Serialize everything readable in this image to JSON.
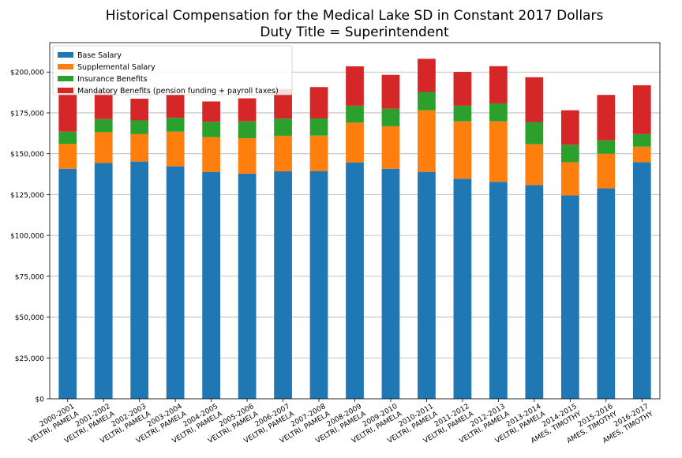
{
  "chart_data": {
    "type": "bar",
    "stacked": true,
    "title": "Historical Compensation for the Medical Lake SD in Constant 2017 Dollars",
    "subtitle": "Duty Title = Superintendent",
    "xlabel": "",
    "ylabel": "",
    "ylim": [
      0,
      218000
    ],
    "yticks": [
      0,
      25000,
      50000,
      75000,
      100000,
      125000,
      150000,
      175000,
      200000
    ],
    "ytick_labels": [
      "$0",
      "$25,000",
      "$50,000",
      "$75,000",
      "$100,000",
      "$125,000",
      "$150,000",
      "$175,000",
      "$200,000"
    ],
    "grid": "horizontal",
    "legend_position": "top-left",
    "categories": [
      {
        "year": "2000-2001",
        "name": "VELTRI, PAMELA"
      },
      {
        "year": "2001-2002",
        "name": "VELTRI, PAMELA"
      },
      {
        "year": "2002-2003",
        "name": "VELTRI, PAMELA"
      },
      {
        "year": "2003-2004",
        "name": "VELTRI, PAMELA"
      },
      {
        "year": "2004-2005",
        "name": "VELTRI, PAMELA"
      },
      {
        "year": "2005-2006",
        "name": "VELTRI, PAMELA"
      },
      {
        "year": "2006-2007",
        "name": "VELTRI, PAMELA"
      },
      {
        "year": "2007-2008",
        "name": "VELTRI, PAMELA"
      },
      {
        "year": "2008-2009",
        "name": "VELTRI, PAMELA"
      },
      {
        "year": "2009-2010",
        "name": "VELTRI, PAMELA"
      },
      {
        "year": "2010-2011",
        "name": "VELTRI, PAMELA"
      },
      {
        "year": "2011-2012",
        "name": "VELTRI, PAMELA"
      },
      {
        "year": "2012-2013",
        "name": "VELTRI, PAMELA"
      },
      {
        "year": "2013-2014",
        "name": "VELTRI, PAMELA"
      },
      {
        "year": "2014-2015",
        "name": "AMES, TIMOTHY"
      },
      {
        "year": "2015-2016",
        "name": "AMES, TIMOTHY"
      },
      {
        "year": "2016-2017",
        "name": "AMES, TIMOTHY"
      }
    ],
    "series": [
      {
        "name": "Base Salary",
        "color": "#1f77b4",
        "values": [
          140800,
          144300,
          145200,
          142300,
          138900,
          137800,
          139200,
          139400,
          144700,
          140800,
          138900,
          134700,
          132800,
          130800,
          124500,
          128800,
          144900
        ]
      },
      {
        "name": "Supplemental Salary",
        "color": "#ff7f0e",
        "values": [
          15200,
          18900,
          16800,
          21200,
          21200,
          21700,
          21800,
          21700,
          24300,
          26000,
          37700,
          35100,
          37000,
          25000,
          20300,
          21200,
          9400
        ]
      },
      {
        "name": "Insurance Benefits",
        "color": "#2ca02c",
        "values": [
          7500,
          8000,
          8400,
          8500,
          9500,
          10300,
          10500,
          10500,
          10400,
          10700,
          11200,
          9600,
          11000,
          13600,
          10700,
          8200,
          7700
        ]
      },
      {
        "name": "Mandatory Benefits (pension funding + payroll taxes)",
        "color": "#d62728",
        "values": [
          23500,
          17800,
          13300,
          14100,
          12400,
          14100,
          18200,
          19200,
          24100,
          20800,
          20300,
          20700,
          22800,
          27400,
          21100,
          27800,
          29900
        ]
      }
    ]
  }
}
